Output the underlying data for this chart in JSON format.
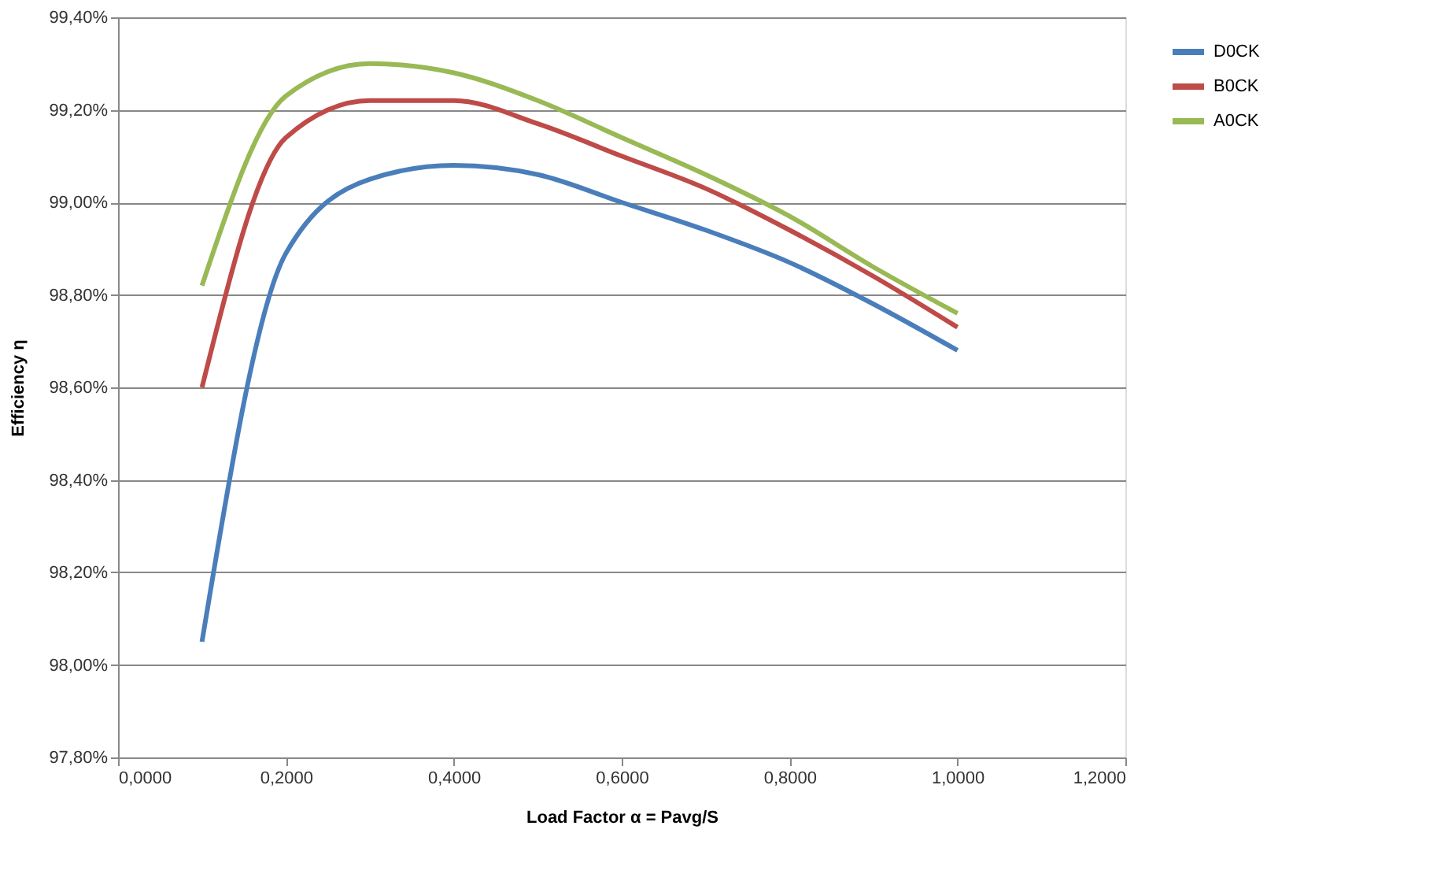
{
  "chart_data": {
    "type": "line",
    "xlabel": "Load Factor α = Pavg/S",
    "ylabel": "Efficiency η",
    "x": [
      0.1,
      0.2,
      0.3,
      0.4,
      0.5,
      0.6,
      0.7,
      0.8,
      0.9,
      1.0
    ],
    "series": [
      {
        "name": "D0CK",
        "color": "#4a7ebb",
        "values": [
          98.05,
          98.89,
          99.05,
          99.08,
          99.06,
          99.0,
          98.94,
          98.87,
          98.78,
          98.68
        ]
      },
      {
        "name": "B0CK",
        "color": "#be4b48",
        "values": [
          98.6,
          99.14,
          99.22,
          99.22,
          99.17,
          99.1,
          99.03,
          98.94,
          98.84,
          98.73
        ]
      },
      {
        "name": "A0CK",
        "color": "#98b954",
        "values": [
          98.82,
          99.23,
          99.3,
          99.28,
          99.22,
          99.14,
          99.06,
          98.97,
          98.86,
          98.76
        ]
      }
    ],
    "xlim": [
      0,
      1.2
    ],
    "xticks": [
      {
        "value": 0,
        "label": "0,0000"
      },
      {
        "value": 0.2,
        "label": "0,2000"
      },
      {
        "value": 0.4,
        "label": "0,4000"
      },
      {
        "value": 0.6,
        "label": "0,6000"
      },
      {
        "value": 0.8,
        "label": "0,8000"
      },
      {
        "value": 1.0,
        "label": "1,0000"
      },
      {
        "value": 1.2,
        "label": "1,2000"
      }
    ],
    "ylim": [
      97.8,
      99.4
    ],
    "yticks": [
      {
        "value": 97.8,
        "label": "97,80%"
      },
      {
        "value": 98.0,
        "label": "98,00%"
      },
      {
        "value": 98.2,
        "label": "98,20%"
      },
      {
        "value": 98.4,
        "label": "98,40%"
      },
      {
        "value": 98.6,
        "label": "98,60%"
      },
      {
        "value": 98.8,
        "label": "98,80%"
      },
      {
        "value": 99.0,
        "label": "99,00%"
      },
      {
        "value": 99.2,
        "label": "99,20%"
      },
      {
        "value": 99.4,
        "label": "99,40%"
      }
    ],
    "grid": "y",
    "legend": "right",
    "marker": "none",
    "line_style": "solid"
  }
}
